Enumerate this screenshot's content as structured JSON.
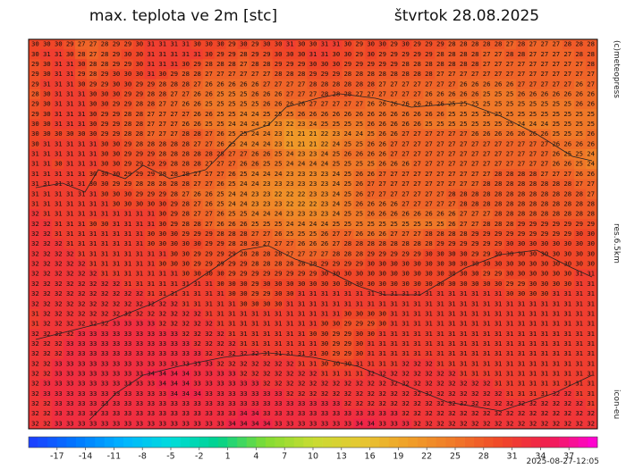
{
  "header": {
    "title": "max. teplota ve 2m [stc]",
    "date": "štvrtok 28.08.2025"
  },
  "side_labels": {
    "copyright": "(c)meteopress",
    "resolution": "res.6.5km",
    "model": "icon-eu"
  },
  "timestamp": "2025-08-27-12:05",
  "grid": {
    "rows": [
      "30 30 30 29 27 27 28 29 29 30 31 31 31 31 30 30 30 29 30 29 30 30 31 30 30 31 31 30 29 30 30 29 30 29 29 29 28 28 28 28 28 27 28 27 27 27 28 28 28",
      "30 31 31 30 28 27 28 29 30 30 31 31 31 31 31 30 29 29 28 29 29 30 30 30 31 31 30 30 29 30 29 29 29 29 29 28 28 28 28 27 27 28 28 27 27 27 27 28 28",
      "29 30 31 31 30 28 28 29 29 30 31 31 31 30 29 28 28 28 27 28 28 29 29 29 30 30 30 29 29 29 29 29 28 28 28 28 28 28 28 27 27 27 27 27 27 27 27 27 28",
      "29 30 31 31 29 28 29 30 30 30 31 30 29 28 28 27 27 27 27 27 27 28 28 28 29 29 29 28 28 28 28 28 28 28 28 27 27 27 27 27 27 27 27 27 27 27 27 27 27",
      "29 31 31 31 30 29 29 30 30 29 29 28 28 28 27 26 26 26 26 26 27 27 27 27 28 28 28 28 28 28 27 27 27 27 27 27 27 26 26 26 26 26 27 27 27 27 27 26 27",
      "28 30 31 31 31 30 30 30 29 29 28 28 27 27 26 26 25 25 25 26 26 26 27 27 27 28 28 28 27 27 27 27 27 27 26 26 26 26 26 25 25 25 26 26 26 26 26 26 26",
      "29 30 31 31 31 30 30 29 29 28 28 27 27 26 26 25 25 25 25 25 26 26 26 26 27 27 27 27 27 26 26 26 26 26 26 26 25 25 25 25 25 25 25 25 25 25 25 26 26",
      "29 30 31 31 31 30 29 29 28 28 27 27 27 27 26 26 25 25 24 24 25 25 25 26 26 26 26 26 26 26 26 26 26 26 26 26 25 25 25 25 25 25 25 25 25 25 25 25 25",
      "30 30 31 31 31 30 29 29 28 28 27 27 27 26 26 25 25 24 24 24 23 23 22 23 24 25 25 25 25 26 26 26 26 26 25 25 25 25 25 25 25 25 24 24 24 25 25 25 25",
      "30 30 30 30 30 30 29 29 28 28 27 27 27 28 28 27 26 25 25 24 24 23 21 21 21 22 23 24 24 25 26 26 27 27 27 27 27 27 26 26 26 26 26 26 26 25 25 25 26",
      "30 31 31 31 31 31 30 30 29 28 28 28 28 28 27 27 26 25 24 24 24 23 21 21 21 22 24 25 25 26 26 27 27 27 27 27 27 27 27 27 27 27 27 27 27 26 26 26 26",
      "31 31 31 31 31 31 30 30 29 29 29 28 28 28 28 28 28 27 27 26 26 25 24 23 23 24 25 26 26 26 26 27 27 27 27 27 27 27 27 27 27 27 27 27 27 26 25 25 24",
      "31 31 30 31 31 31 30 30 29 29 29 29 28 28 28 27 27 27 26 26 25 25 24 24 24 24 25 25 25 25 26 26 26 27 27 27 27 27 27 27 27 27 27 27 27 26 26 25 24",
      "31 31 31 31 31 30 30 30 29 29 29 28 28 28 27 27 27 26 25 24 24 24 23 23 23 23 24 25 26 26 27 27 27 27 27 27 27 27 27 27 28 28 28 28 27 27 27 26 26",
      "31 31 31 31 31 30 30 29 29 28 28 28 28 28 27 27 26 25 24 24 23 23 23 23 23 23 24 25 26 27 27 27 27 27 27 27 27 27 27 28 28 28 28 28 28 28 28 27 27",
      "31 31 31 31 31 31 30 30 30 29 29 29 28 27 26 26 25 24 24 23 23 22 22 22 23 23 24 25 26 27 27 27 27 27 27 27 28 28 28 28 28 28 28 28 28 28 28 28 27",
      "31 31 31 31 31 31 31 30 30 30 30 30 29 28 27 26 25 24 24 23 23 23 22 22 22 23 24 25 26 26 26 26 27 27 27 27 27 28 28 28 28 28 28 28 28 28 28 28 28",
      "32 31 31 31 31 31 31 31 31 31 31 30 29 28 27 27 26 25 25 24 24 24 23 23 23 23 24 25 25 26 26 26 26 26 26 26 26 27 27 27 28 28 28 28 28 28 28 28 28",
      "32 32 31 31 31 30 30 31 31 31 31 30 29 28 28 27 26 26 26 25 25 25 24 24 24 24 25 25 25 25 25 25 25 25 25 25 26 27 27 28 28 28 29 29 29 29 29 29 29",
      "32 32 31 31 31 31 31 31 31 31 30 30 30 29 29 29 28 28 28 27 27 26 25 25 25 26 27 27 26 26 26 27 27 27 28 28 28 28 29 29 29 29 29 29 29 29 29 30 30",
      "32 32 32 31 31 31 31 31 31 31 30 30 30 30 30 29 29 28 28 28 27 27 27 26 26 26 27 28 28 28 28 28 28 28 28 29 29 29 29 29 29 30 30 30 30 30 30 30 30",
      "32 32 32 32 31 31 31 31 31 31 31 31 30 30 29 29 29 29 28 28 28 28 27 27 27 27 28 28 28 29 29 29 29 29 30 30 30 30 29 29 30 30 30 30 30 30 30 30 30",
      "32 32 32 32 32 31 31 31 31 31 31 30 30 30 29 29 29 29 29 28 28 28 28 28 28 29 29 29 29 30 30 30 30 30 30 30 30 30 30 30 30 30 30 30 30 30 30 30 30",
      "32 32 32 32 32 32 31 31 31 31 31 31 31 30 30 30 30 29 29 29 29 29 29 29 29 30 30 30 30 30 30 30 30 30 30 30 30 30 30 29 29 30 30 30 30 30 30 31 31",
      "32 32 32 32 32 32 32 32 31 31 31 31 31 31 31 31 30 30 30 29 30 30 30 30 30 30 30 30 30 30 30 30 30 30 30 30 30 30 30 30 30 29 29 30 30 30 30 31 31",
      "32 32 32 32 32 32 32 32 32 32 31 31 31 31 31 31 31 30 30 29 29 30 30 31 31 31 31 31 31 31 31 31 31 31 31 31 31 31 31 31 31 30 30 30 30 31 31 31 31",
      "32 32 32 32 32 32 32 32 32 32 32 32 32 31 31 31 31 31 30 30 30 30 31 31 31 31 31 31 31 31 31 31 31 31 31 31 31 31 31 31 31 31 31 31 31 31 31 31 31",
      "31 32 32 32 32 32 32 32 32 32 32 32 32 32 32 31 31 31 31 31 31 31 31 31 31 31 31 30 30 30 30 31 31 31 31 31 31 31 31 31 31 31 31 31 31 31 31 31 31",
      "31 32 32 32 32 32 32 33 33 33 33 32 32 32 32 32 31 31 31 31 31 31 31 31 31 30 30 29 29 29 30 31 31 31 31 31 31 31 31 31 31 31 31 31 31 31 31 31 31",
      "32 32 32 32 33 33 33 33 33 33 33 33 33 32 32 32 32 31 31 31 31 31 31 31 30 30 29 29 30 30 31 31 31 31 31 31 31 31 31 31 31 31 31 31 31 31 31 31 31",
      "32 32 32 33 33 33 33 33 33 33 33 33 33 33 32 32 32 32 31 31 31 31 31 31 31 30 29 29 30 31 31 31 31 31 31 31 31 31 31 31 31 31 31 31 31 31 31 31 31",
      "32 32 32 33 33 33 33 33 33 33 33 33 33 33 33 32 32 32 32 32 31 31 31 31 31 30 29 29 30 31 31 31 31 31 31 31 31 31 31 31 31 31 31 31 31 31 31 31 31",
      "32 32 33 33 33 33 33 33 33 33 33 33 33 33 33 33 32 32 32 32 32 32 32 31 31 30 30 30 31 31 31 31 32 32 32 31 31 31 31 31 31 31 31 31 31 31 31 31 31",
      "32 32 33 33 33 33 33 33 33 33 34 34 34 34 33 33 33 33 32 32 32 32 32 32 32 31 31 31 31 32 32 32 32 32 32 32 32 31 31 31 31 31 31 31 31 31 31 31 31",
      "32 33 33 33 33 33 33 33 33 33 33 34 34 34 33 33 33 33 33 33 32 32 32 32 32 32 32 32 32 32 32 32 32 32 32 32 32 32 32 32 31 31 31 31 31 31 31 31 31",
      "32 33 33 33 33 33 33 33 33 33 33 33 34 34 34 33 33 33 33 33 33 33 32 32 32 32 32 32 32 32 32 32 32 32 32 32 32 32 32 32 32 31 31 31 31 32 32 31 31",
      "32 32 33 33 33 33 33 33 33 33 33 33 33 33 33 33 33 33 33 33 33 33 33 33 33 33 33 32 32 32 32 32 32 32 32 32 32 32 32 32 32 32 32 32 32 32 32 32 31",
      "32 32 33 33 33 33 33 33 33 33 33 33 33 33 33 33 33 33 34 34 33 33 33 33 33 33 33 33 33 33 33 33 32 32 32 32 32 32 32 32 32 32 32 32 32 32 32 32 32",
      "32 32 33 33 33 33 33 33 33 33 33 33 33 33 33 33 33 34 34 34 34 33 33 33 33 33 33 33 34 34 33 33 33 32 32 32 32 32 32 32 32 32 32 32 32 32 32 32 32"
    ]
  },
  "colorbar": {
    "range": [
      -20,
      40
    ],
    "ticks": [
      -17,
      -14,
      -11,
      -8,
      -5,
      -2,
      1,
      4,
      7,
      10,
      13,
      16,
      19,
      22,
      25,
      28,
      31,
      34,
      37
    ],
    "colors": [
      "#1e3cff",
      "#0078ff",
      "#00b4ff",
      "#00dcdc",
      "#00d28c",
      "#82dc32",
      "#c8dc32",
      "#e6c832",
      "#f0a028",
      "#f07828",
      "#f04628",
      "#f01e50",
      "#ff00dc"
    ]
  }
}
